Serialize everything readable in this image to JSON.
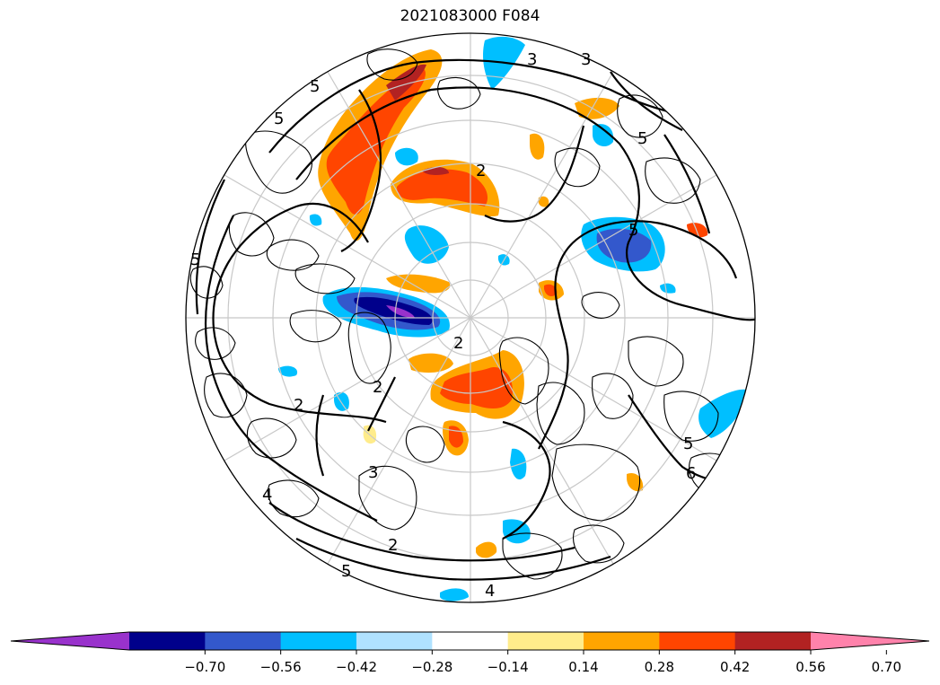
{
  "title": "2021083000 F084",
  "contour_labels": [
    "5",
    "5",
    "5",
    "3",
    "3",
    "3",
    "5",
    "5",
    "2",
    "2",
    "2",
    "2",
    "4",
    "4",
    "5",
    "5",
    "6",
    "2"
  ],
  "colorbar": {
    "ticks": [
      "−0.70",
      "−0.56",
      "−0.42",
      "−0.28",
      "−0.14",
      "0.14",
      "0.28",
      "0.42",
      "0.56",
      "0.70"
    ],
    "colors": [
      "#9932cc",
      "#00008b",
      "#3358cc",
      "#00bfff",
      "#b0e2ff",
      "#ffffff",
      "#ffec8b",
      "#ffa500",
      "#ff4500",
      "#b22222",
      "#ff82ab"
    ]
  },
  "map": {
    "projection": "north-polar-stereographic",
    "land_line_color": "#000000",
    "graticule_color": "#c8c8c8"
  }
}
